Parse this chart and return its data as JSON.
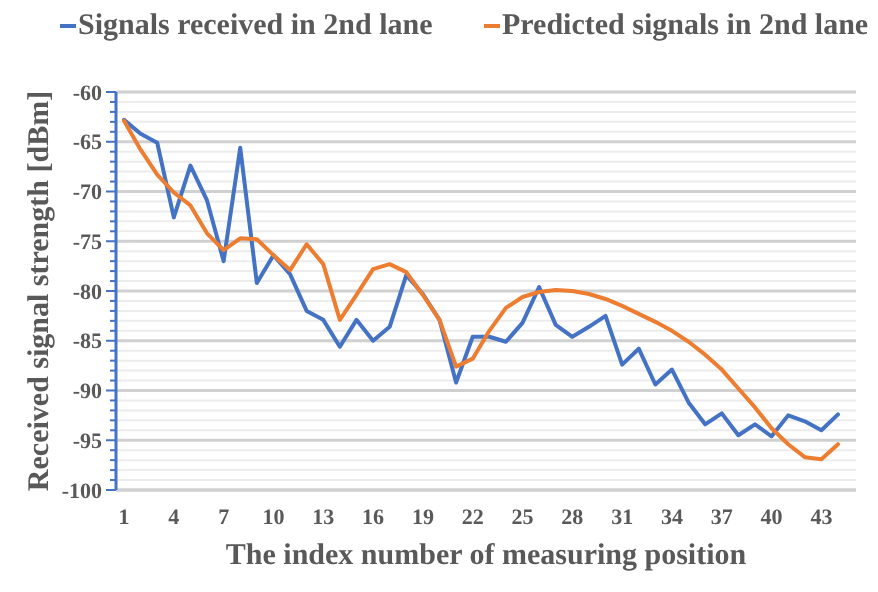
{
  "chart_data": {
    "type": "line",
    "xlabel": "The index number of measuring position",
    "ylabel": "Received signal strength  [dBm]",
    "categories": [
      "1",
      null,
      null,
      "4",
      null,
      null,
      "7",
      null,
      null,
      "10",
      null,
      null,
      "13",
      null,
      null,
      "16",
      null,
      null,
      "19",
      null,
      null,
      "22",
      null,
      null,
      "25",
      null,
      null,
      "28",
      null,
      null,
      "31",
      null,
      null,
      "34",
      null,
      null,
      "37",
      null,
      null,
      "40",
      null,
      null,
      "43",
      null
    ],
    "series": [
      {
        "name": "Signals received in 2nd lane",
        "color": "#4472c4",
        "values": [
          -62.8,
          -64.2,
          -65.1,
          -72.6,
          -67.4,
          -70.9,
          -77.0,
          -65.6,
          -79.2,
          -76.4,
          -78.3,
          -82.0,
          -82.9,
          -85.6,
          -82.9,
          -85.0,
          -83.6,
          -78.4,
          -80.3,
          -82.9,
          -89.2,
          -84.6,
          -84.6,
          -85.1,
          -83.2,
          -79.6,
          -83.4,
          -84.6,
          -83.6,
          -82.5,
          -87.4,
          -85.8,
          -89.4,
          -87.9,
          -91.2,
          -93.4,
          -92.3,
          -94.5,
          -93.4,
          -94.6,
          -92.5,
          -93.1,
          -94.0,
          -92.4
        ]
      },
      {
        "name": "Predicted signals in 2nd lane",
        "color": "#ed7d31",
        "values": [
          -62.9,
          -65.8,
          -68.3,
          -70.1,
          -71.4,
          -74.2,
          -75.9,
          -74.7,
          -74.8,
          -76.4,
          -77.9,
          -75.3,
          -77.3,
          -82.9,
          -80.4,
          -77.8,
          -77.3,
          -78.1,
          -80.4,
          -82.9,
          -87.6,
          -86.8,
          -84.0,
          -81.7,
          -80.6,
          -80.1,
          -79.9,
          -80.0,
          -80.3,
          -80.8,
          -81.5,
          -82.3,
          -83.1,
          -84.0,
          -85.1,
          -86.4,
          -87.9,
          -89.8,
          -91.7,
          -93.8,
          -95.4,
          -96.7,
          -96.9,
          -95.4
        ]
      }
    ],
    "ylim": [
      -100,
      -60
    ],
    "yticks": [
      -100,
      {
        "value": -99,
        "label": null
      },
      {
        "value": -98,
        "label": null
      },
      {
        "value": -97,
        "label": null
      },
      {
        "value": -96,
        "label": null
      },
      -95,
      {
        "value": -94,
        "label": null
      },
      {
        "value": -93,
        "label": null
      },
      {
        "value": -92,
        "label": null
      },
      {
        "value": -91,
        "label": null
      },
      -90,
      {
        "value": -89,
        "label": null
      },
      {
        "value": -88,
        "label": null
      },
      {
        "value": -87,
        "label": null
      },
      {
        "value": -86,
        "label": null
      },
      -85,
      {
        "value": -84,
        "label": null
      },
      {
        "value": -83,
        "label": null
      },
      {
        "value": -82,
        "label": null
      },
      {
        "value": -81,
        "label": null
      },
      -80,
      {
        "value": -79,
        "label": null
      },
      {
        "value": -78,
        "label": null
      },
      {
        "value": -77,
        "label": null
      },
      {
        "value": -76,
        "label": null
      },
      -75,
      {
        "value": -74,
        "label": null
      },
      {
        "value": -73,
        "label": null
      },
      {
        "value": -72,
        "label": null
      },
      {
        "value": -71,
        "label": null
      },
      -70,
      {
        "value": -69,
        "label": null
      },
      {
        "value": -68,
        "label": null
      },
      {
        "value": -67,
        "label": null
      },
      {
        "value": -66,
        "label": null
      },
      -65,
      {
        "value": -64,
        "label": null
      },
      {
        "value": -63,
        "label": null
      },
      {
        "value": -62,
        "label": null
      },
      {
        "value": -61,
        "label": null
      },
      -60
    ],
    "grid": "y",
    "legend": "top",
    "marker": "none",
    "line_style": "solid"
  }
}
